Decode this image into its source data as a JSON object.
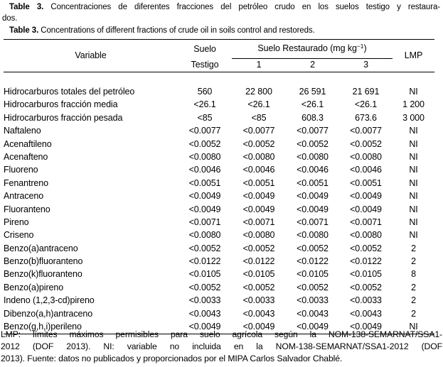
{
  "caption": {
    "es": {
      "label": "Table 3.",
      "line1": "Concentraciones de diferentes fracciones del petróleo crudo en los suelos testigo y restaura-",
      "line2": "dos."
    },
    "en": {
      "label": "Table 3.",
      "text": "Concentrations of different fractions of crude oil in soils control and restoreds."
    }
  },
  "table": {
    "header": {
      "variable": "Variable",
      "testigo_line1": "Suelo",
      "testigo_line2": "Testigo",
      "restaurado_prefix": "Suelo Restaurado (mg kg",
      "restaurado_sup": "−1",
      "restaurado_suffix": ")",
      "sub_columns": [
        "1",
        "2",
        "3"
      ],
      "lmp": "LMP"
    },
    "rows": [
      {
        "variable": "Hidrocarburos totales del petróleo",
        "testigo": "560",
        "r1": "22 800",
        "r2": "26 591",
        "r3": "21 691",
        "lmp": "NI"
      },
      {
        "variable": "Hidrocarburos fracción media",
        "testigo": "<26.1",
        "r1": "<26.1",
        "r2": "<26.1",
        "r3": "<26.1",
        "lmp": "1 200"
      },
      {
        "variable": "Hidrocarburos fracción pesada",
        "testigo": "<85",
        "r1": "<85",
        "r2": "608.3",
        "r3": "673.6",
        "lmp": "3 000"
      },
      {
        "variable": "Naftaleno",
        "testigo": "<0.0077",
        "r1": "<0.0077",
        "r2": "<0.0077",
        "r3": "<0.0077",
        "lmp": "NI"
      },
      {
        "variable": "Acenaftileno",
        "testigo": "<0.0052",
        "r1": "<0.0052",
        "r2": "<0.0052",
        "r3": "<0.0052",
        "lmp": "NI"
      },
      {
        "variable": "Acenafteno",
        "testigo": "<0.0080",
        "r1": "<0.0080",
        "r2": "<0.0080",
        "r3": "<0.0080",
        "lmp": "NI"
      },
      {
        "variable": "Fluoreno",
        "testigo": "<0.0046",
        "r1": "<0.0046",
        "r2": "<0.0046",
        "r3": "<0.0046",
        "lmp": "NI"
      },
      {
        "variable": "Fenantreno",
        "testigo": "<0.0051",
        "r1": "<0.0051",
        "r2": "<0.0051",
        "r3": "<0.0051",
        "lmp": "NI"
      },
      {
        "variable": "Antraceno",
        "testigo": "<0.0049",
        "r1": "<0.0049",
        "r2": "<0.0049",
        "r3": "<0.0049",
        "lmp": "NI"
      },
      {
        "variable": "Fluoranteno",
        "testigo": "<0.0049",
        "r1": "<0.0049",
        "r2": "<0.0049",
        "r3": "<0.0049",
        "lmp": "NI"
      },
      {
        "variable": "Pireno",
        "testigo": "<0.0071",
        "r1": "<0.0071",
        "r2": "<0.0071",
        "r3": "<0.0071",
        "lmp": "NI"
      },
      {
        "variable": "Criseno",
        "testigo": "<0.0080",
        "r1": "<0.0080",
        "r2": "<0.0080",
        "r3": "<0.0080",
        "lmp": "NI"
      },
      {
        "variable": "Benzo(a)antraceno",
        "testigo": "<0.0052",
        "r1": "<0.0052",
        "r2": "<0.0052",
        "r3": "<0.0052",
        "lmp": "2"
      },
      {
        "variable": "Benzo(b)fluoranteno",
        "testigo": "<0.0122",
        "r1": "<0.0122",
        "r2": "<0.0122",
        "r3": "<0.0122",
        "lmp": "2"
      },
      {
        "variable": "Benzo(k)fluoranteno",
        "testigo": "<0.0105",
        "r1": "<0.0105",
        "r2": "<0.0105",
        "r3": "<0.0105",
        "lmp": "8"
      },
      {
        "variable": "Benzo(a)pireno",
        "testigo": "<0.0052",
        "r1": "<0.0052",
        "r2": "<0.0052",
        "r3": "<0.0052",
        "lmp": "2"
      },
      {
        "variable": "Indeno (1,2,3-cd)pireno",
        "testigo": "<0.0033",
        "r1": "<0.0033",
        "r2": "<0.0033",
        "r3": "<0.0033",
        "lmp": "2"
      },
      {
        "variable": "Dibenzo(a,h)antraceno",
        "testigo": "<0.0043",
        "r1": "<0.0043",
        "r2": "<0.0043",
        "r3": "<0.0043",
        "lmp": "2"
      },
      {
        "variable": "Benzo(g,h,i)perileno",
        "testigo": "<0.0049",
        "r1": "<0.0049",
        "r2": "<0.0049",
        "r3": "<0.0049",
        "lmp": "NI"
      }
    ]
  },
  "footnote": {
    "line1": "LMP: límites máximos permisibles para suelo agrícola según la NOM-138-SEMARNAT/SSA1-",
    "line2": "2012 (DOF 2013). NI: variable no incluida en la NOM-138-SEMARNAT/SSA1-2012 (DOF",
    "line3": "2013). Fuente: datos no publicados y proporcionados por el MIPA Carlos Salvador Chablé."
  }
}
